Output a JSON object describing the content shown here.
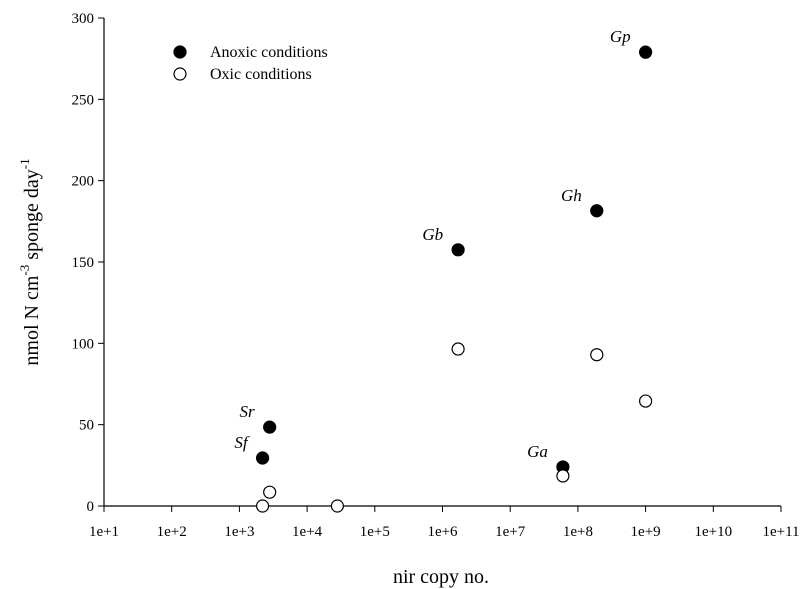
{
  "chart_data": {
    "type": "scatter",
    "title": "",
    "xlabel": "nir copy no.",
    "ylabel_main": "nmol N cm",
    "ylabel_sup1": "-3",
    "ylabel_mid": " sponge day",
    "ylabel_sup2": "-1",
    "x_scale": "log",
    "xlim": [
      10,
      100000000000
    ],
    "ylim": [
      0,
      300
    ],
    "x_ticks": [
      10,
      100,
      1000,
      10000,
      100000,
      1000000,
      10000000,
      100000000,
      1000000000,
      10000000000,
      100000000000
    ],
    "x_tick_labels": [
      "1e+1",
      "1e+2",
      "1e+3",
      "1e+4",
      "1e+5",
      "1e+6",
      "1e+7",
      "1e+8",
      "1e+9",
      "1e+10",
      "1e+11"
    ],
    "y_ticks": [
      0,
      50,
      100,
      150,
      200,
      250,
      300
    ],
    "y_tick_labels": [
      "0",
      "50",
      "100",
      "150",
      "200",
      "250",
      "300"
    ],
    "grid": false,
    "legend_position": "top-left",
    "series": [
      {
        "name": "Anoxic conditions",
        "marker": "filled-circle",
        "color": "#000000",
        "points": [
          {
            "x": 2800,
            "y": 48.5
          },
          {
            "x": 2200,
            "y": 29.5
          },
          {
            "x": 1700000,
            "y": 157.5
          },
          {
            "x": 60000000,
            "y": 24
          },
          {
            "x": 190000000,
            "y": 181.5
          },
          {
            "x": 1000000000,
            "y": 279
          }
        ]
      },
      {
        "name": "Oxic conditions",
        "marker": "open-circle",
        "color": "#ffffff",
        "points": [
          {
            "x": 2800,
            "y": 8.5
          },
          {
            "x": 2200,
            "y": 0
          },
          {
            "x": 28000,
            "y": 0
          },
          {
            "x": 1700000,
            "y": 96.5
          },
          {
            "x": 60000000,
            "y": 18.5
          },
          {
            "x": 190000000,
            "y": 93
          },
          {
            "x": 1000000000,
            "y": 64.5
          }
        ]
      }
    ],
    "annotations": [
      {
        "text": "Sr",
        "x": 2800,
        "y": 48.5
      },
      {
        "text": "Sf",
        "x": 2200,
        "y": 29.5
      },
      {
        "text": "Gb",
        "x": 1700000,
        "y": 157.5
      },
      {
        "text": "Ga",
        "x": 60000000,
        "y": 24
      },
      {
        "text": "Gh",
        "x": 190000000,
        "y": 181.5
      },
      {
        "text": "Gp",
        "x": 1000000000,
        "y": 279
      }
    ]
  }
}
